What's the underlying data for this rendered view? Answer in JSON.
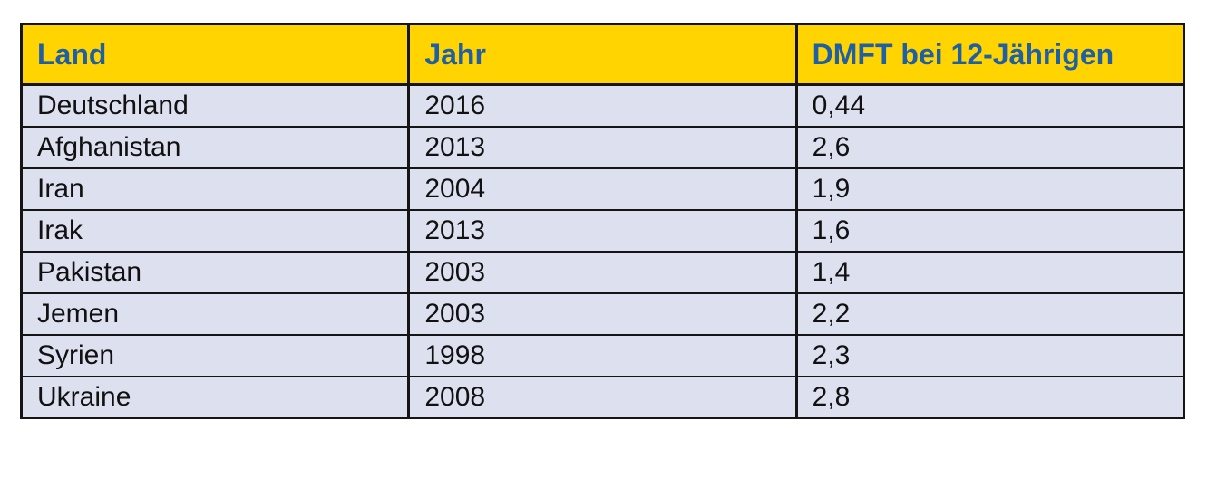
{
  "table": {
    "header": [
      "Land",
      "Jahr",
      "DMFT bei 12-Jährigen"
    ],
    "rows": [
      [
        "Deutschland",
        "2016",
        "0,44"
      ],
      [
        "Afghanistan",
        "2013",
        "2,6"
      ],
      [
        "Iran",
        "2004",
        "1,9"
      ],
      [
        "Irak",
        "2013",
        "1,6"
      ],
      [
        "Pakistan",
        "2003",
        "1,4"
      ],
      [
        "Jemen",
        "2003",
        "2,2"
      ],
      [
        "Syrien",
        "1998",
        "2,3"
      ],
      [
        "Ukraine",
        "2008",
        "2,8"
      ]
    ]
  }
}
